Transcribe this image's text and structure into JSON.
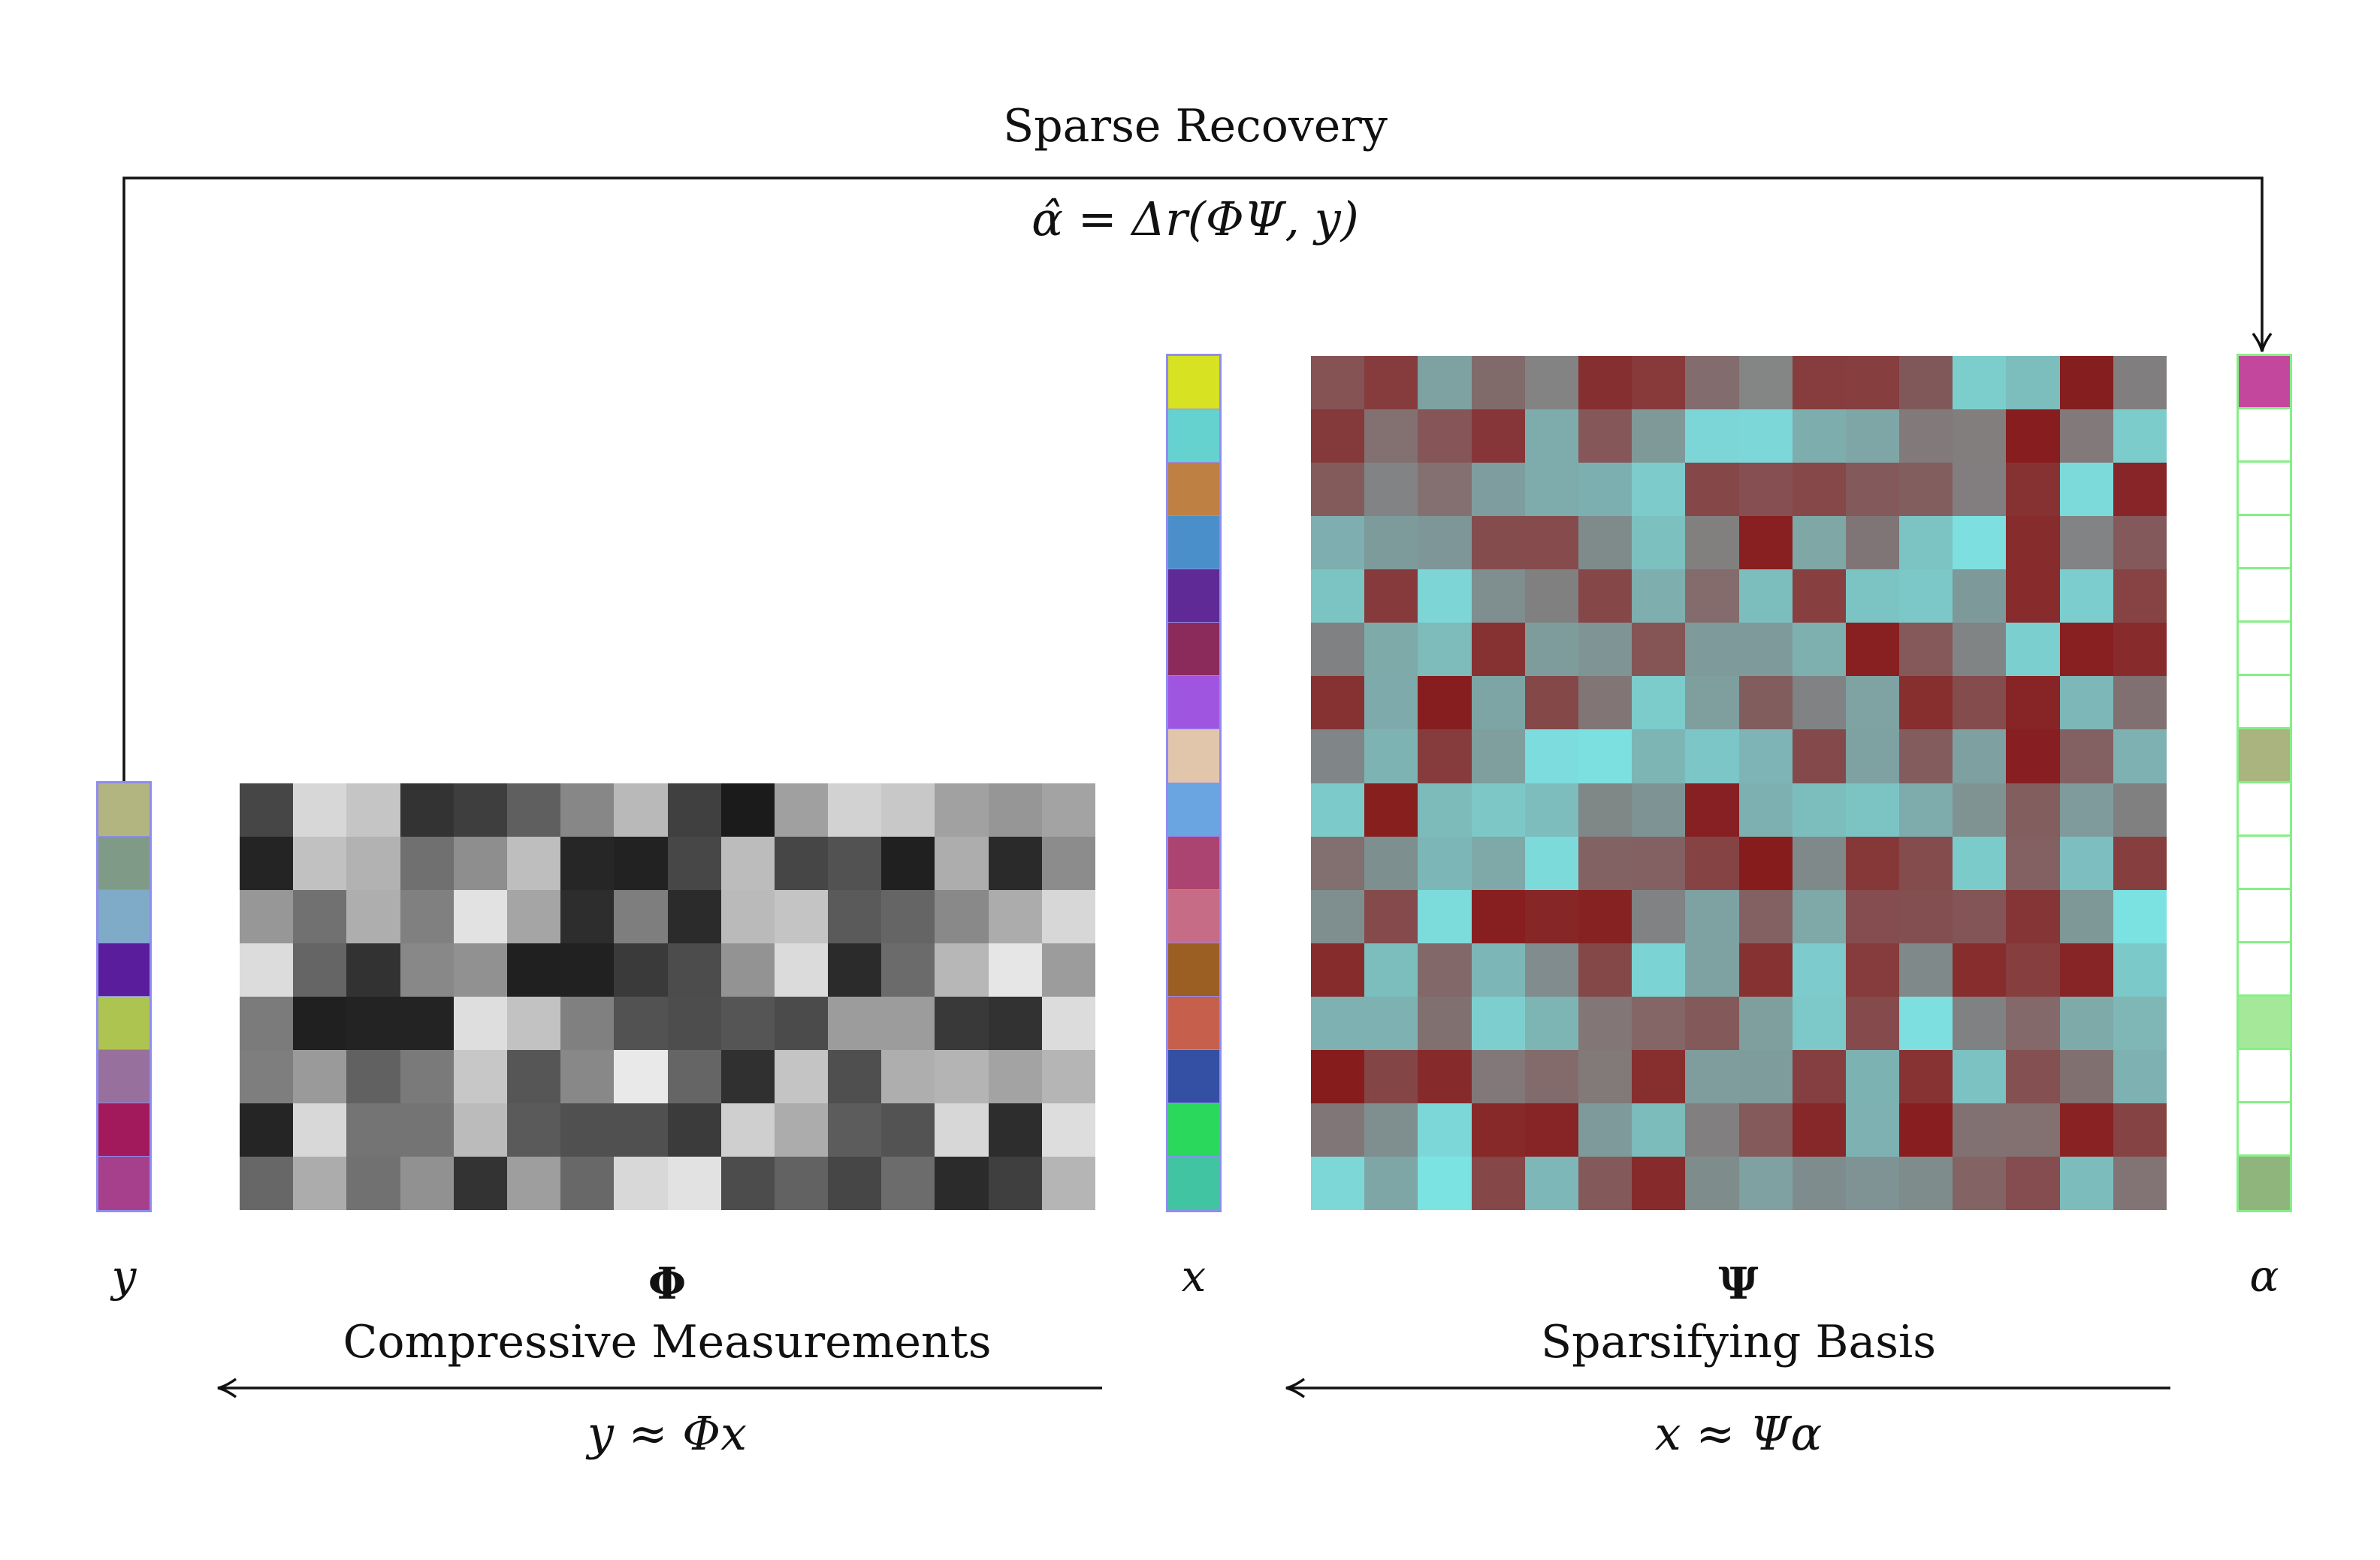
{
  "top": {
    "title": "Sparse Recovery",
    "equation": "α̂ = Δr(ΦΨ, y)"
  },
  "labels": {
    "y": "y",
    "phi_symbol": "Φ",
    "phi_name": "Compressive Measurements",
    "phi_equation": "y ≈ Φx",
    "x": "x",
    "psi_symbol": "Ψ",
    "psi_name": "Sparsifying Basis",
    "psi_equation": "x ≈ Ψα",
    "alpha": "α"
  },
  "colors": {
    "vector_outline": "#8f8cf0",
    "alpha_outline": "#86ef86",
    "arrow": "#111111"
  },
  "vectors": {
    "y": [
      "#b2b57f",
      "#7f9b87",
      "#7fabc9",
      "#5a1e9c",
      "#adc550",
      "#98709e",
      "#a21a5c",
      "#a63f8c"
    ],
    "x": [
      "#d6e222",
      "#66d2cf",
      "#be8043",
      "#4b8fca",
      "#5f2a96",
      "#8a2b5c",
      "#a055e0",
      "#e2c6ab",
      "#6aa5e2",
      "#ab4470",
      "#c76c86",
      "#9c5f23",
      "#c6604c",
      "#3350a4",
      "#2ad85c",
      "#41c4a2"
    ],
    "alpha": [
      "#c3489d",
      "#ffffff",
      "#ffffff",
      "#ffffff",
      "#ffffff",
      "#ffffff",
      "#ffffff",
      "#aab47f",
      "#ffffff",
      "#ffffff",
      "#ffffff",
      "#ffffff",
      "#a6e89a",
      "#ffffff",
      "#ffffff",
      "#90b57c"
    ]
  },
  "phi": [
    [
      70,
      215,
      197,
      51,
      62,
      95,
      135,
      185,
      64,
      27,
      160,
      210,
      200,
      161,
      150,
      163
    ],
    [
      36,
      193,
      178,
      112,
      142,
      190,
      38,
      34,
      71,
      188,
      70,
      82,
      32,
      173,
      42,
      140
    ],
    [
      151,
      113,
      174,
      128,
      226,
      165,
      45,
      126,
      43,
      186,
      196,
      90,
      101,
      137,
      172,
      215
    ],
    [
      220,
      101,
      50,
      136,
      145,
      32,
      33,
      58,
      76,
      147,
      219,
      43,
      107,
      183,
      230,
      156
    ],
    [
      123,
      32,
      35,
      35,
      222,
      194,
      128,
      82,
      77,
      85,
      75,
      156,
      156,
      57,
      50,
      220
    ],
    [
      126,
      154,
      97,
      122,
      199,
      86,
      136,
      233,
      101,
      48,
      196,
      79,
      174,
      180,
      163,
      181
    ],
    [
      37,
      216,
      116,
      116,
      187,
      90,
      80,
      80,
      59,
      207,
      172,
      92,
      83,
      215,
      45,
      221
    ],
    [
      103,
      172,
      113,
      145,
      51,
      158,
      104,
      216,
      226,
      76,
      98,
      70,
      108,
      43,
      63,
      181
    ]
  ],
  "psi": [
    [
      "#855354",
      "#863c3d",
      "#7ea1a1",
      "#816a6a",
      "#838384",
      "#852f30",
      "#883a3b",
      "#836c6e",
      "#848585",
      "#873d3e",
      "#863e3f",
      "#81585a",
      "#7ccecc",
      "#7cbdbd",
      "#841e1f",
      "#817e7f"
    ],
    [
      "#843a3a",
      "#827170",
      "#855557",
      "#863638",
      "#7eacac",
      "#855759",
      "#7f9999",
      "#7cd6d7",
      "#7cd7d9",
      "#7eadad",
      "#7fa6a7",
      "#82797a",
      "#827e7e",
      "#881d1f",
      "#81797a",
      "#7ccccc"
    ],
    [
      "#835b5b",
      "#828384",
      "#847071",
      "#7e9d9e",
      "#7eabab",
      "#7cb0b0",
      "#7dcbcb",
      "#854748",
      "#864f51",
      "#864849",
      "#84595b",
      "#835e5f",
      "#827e7f",
      "#863233",
      "#7cdadb",
      "#872528"
    ],
    [
      "#7eaeaf",
      "#7e9b9b",
      "#7e9697",
      "#854c4e",
      "#864c4d",
      "#7f8b8b",
      "#7cc0c0",
      "#827f7f",
      "#881f20",
      "#7fa7a6",
      "#807576",
      "#7cc4c4",
      "#7ddfdf",
      "#862c2d",
      "#828384",
      "#84595b"
    ],
    [
      "#7cc4c4",
      "#863a3b",
      "#7dd5d5",
      "#7f8e8f",
      "#818081",
      "#864749",
      "#7eaeae",
      "#846c6c",
      "#7cbdbe",
      "#873f40",
      "#7cc4c4",
      "#7cc7c7",
      "#7e9999",
      "#872b2c",
      "#7ccdcd",
      "#874344"
    ],
    [
      "#808182",
      "#7eaaa9",
      "#7dbcbb",
      "#863233",
      "#7f9c9c",
      "#7f9494",
      "#855556",
      "#7e9a9b",
      "#7f9a9a",
      "#7eb0af",
      "#881f20",
      "#855859",
      "#808485",
      "#7ccfcf",
      "#881f20",
      "#882b2c"
    ],
    [
      "#863132",
      "#7eaaab",
      "#861d1e",
      "#7ea5a6",
      "#844849",
      "#827575",
      "#7ccccc",
      "#7f9e9e",
      "#815d5e",
      "#808283",
      "#7fa2a2",
      "#872e2f",
      "#854c4e",
      "#872425",
      "#7db7b7",
      "#807071"
    ],
    [
      "#808687",
      "#7eb3b3",
      "#863c3d",
      "#7f9e9e",
      "#7ddcdd",
      "#7ce0e0",
      "#7db5b5",
      "#7cc6c7",
      "#7eb4b5",
      "#844a4b",
      "#7ea1a1",
      "#835d5e",
      "#7ea0a1",
      "#871f22",
      "#836162",
      "#7eb1b1"
    ],
    [
      "#7ccaca",
      "#871f1f",
      "#7dbbbb",
      "#7dc7c7",
      "#7dbdbd",
      "#808787",
      "#7e9393",
      "#872022",
      "#7db1b1",
      "#7cbdbd",
      "#7cc4c4",
      "#7eabab",
      "#7f9393",
      "#835e5f",
      "#7f9b9b",
      "#808080"
    ],
    [
      "#826f6f",
      "#7e8f8f",
      "#7db6b7",
      "#7fa8a9",
      "#7cdadb",
      "#836263",
      "#836062",
      "#864344",
      "#871c1d",
      "#80898a",
      "#863839",
      "#854c4e",
      "#7ccbcb",
      "#836061",
      "#7dbfc0",
      "#873e3f"
    ],
    [
      "#7f8f8f",
      "#854a4b",
      "#7cdbdb",
      "#871f20",
      "#872627",
      "#872223",
      "#818283",
      "#7ea1a1",
      "#836162",
      "#7fa8a8",
      "#854d4f",
      "#844f51",
      "#845556",
      "#863536",
      "#7e9797",
      "#7ce1e1"
    ],
    [
      "#862c2d",
      "#7cbebe",
      "#836869",
      "#7db6b6",
      "#808c8d",
      "#854849",
      "#7cd3d4",
      "#7ea2a2",
      "#863132",
      "#7dcbcc",
      "#863b3c",
      "#7f898a",
      "#872d2e",
      "#863e3f",
      "#872526",
      "#7cc9c9"
    ],
    [
      "#7eb1b1",
      "#7eb1b2",
      "#817070",
      "#7dcfcf",
      "#7db5b5",
      "#827677",
      "#846667",
      "#84595a",
      "#7f9e9e",
      "#7dc8c8",
      "#854b4c",
      "#7ddfe0",
      "#808182",
      "#83696a",
      "#7eaaaa",
      "#7fb6b6"
    ],
    [
      "#871c1d",
      "#844546",
      "#872a2b",
      "#827879",
      "#836b6c",
      "#827979",
      "#872e2f",
      "#7f9d9d",
      "#7f9c9c",
      "#853f40",
      "#7db2b2",
      "#873233",
      "#7dc2c2",
      "#855051",
      "#817070",
      "#7eb2b2"
    ],
    [
      "#817677",
      "#7f8f8f",
      "#7cd8d8",
      "#872829",
      "#872425",
      "#7f9a9a",
      "#7cbcbb",
      "#817f7f",
      "#845a5b",
      "#862729",
      "#7eb2b2",
      "#881e1f",
      "#827172",
      "#837070",
      "#882223",
      "#864344"
    ],
    [
      "#7dd7d7",
      "#7fa6a7",
      "#7ce3e3",
      "#854748",
      "#7db7b7",
      "#84595a",
      "#872a2b",
      "#7f8c8c",
      "#7fa1a1",
      "#7f8c8d",
      "#7f9394",
      "#7f8c8c",
      "#846365",
      "#854d4f",
      "#7dbcbc",
      "#827475"
    ]
  ]
}
